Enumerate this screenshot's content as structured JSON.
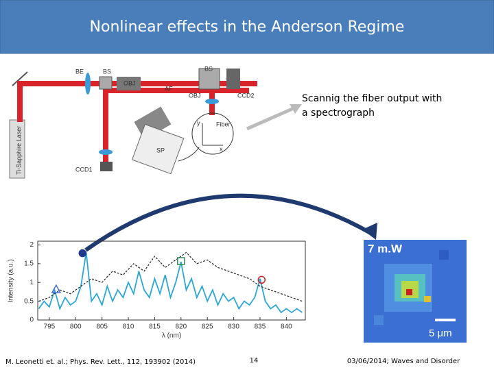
{
  "header": {
    "title": "Nonlinear effects in the Anderson Regime"
  },
  "setup": {
    "labels": [
      "BE",
      "BS",
      "OBJ",
      "AF",
      "OBJ",
      "BS",
      "CCD2",
      "CCD1",
      "SP",
      "Fiber",
      "y",
      "x",
      "Ti-Sapphire Laser"
    ]
  },
  "annotation": {
    "lines": [
      "Scannig the fiber output with",
      "a spectrograph"
    ]
  },
  "inset": {
    "power": "7 m.W",
    "scale": "5 μm"
  },
  "chart_data": {
    "type": "line",
    "xlabel": "λ (nm)",
    "ylabel": "Intensity (a.u.)",
    "xlim": [
      792.8,
      843.6
    ],
    "ylim": [
      0,
      2.1
    ],
    "xticks": [
      795,
      800,
      805,
      810,
      815,
      820,
      825,
      830,
      835,
      840
    ],
    "yticks": [
      0,
      0.5,
      1,
      1.5,
      2
    ],
    "series": [
      {
        "color": "#2aa6d6",
        "style": "solid",
        "x": [
          793,
          794,
          795,
          796,
          797,
          798,
          799,
          800,
          801,
          802,
          803,
          804,
          805,
          806,
          807,
          808,
          809,
          810,
          811,
          812,
          813,
          814,
          815,
          816,
          817,
          818,
          819,
          820,
          821,
          822,
          823,
          824,
          825,
          826,
          827,
          828,
          829,
          830,
          831,
          832,
          833,
          834,
          835,
          836,
          837,
          838,
          839,
          840,
          841,
          842,
          843
        ],
        "values": [
          0.3,
          0.5,
          0.35,
          0.8,
          0.3,
          0.6,
          0.4,
          0.5,
          0.9,
          1.8,
          0.5,
          0.7,
          0.4,
          0.9,
          0.5,
          0.8,
          0.6,
          1.0,
          0.7,
          1.3,
          0.8,
          0.6,
          1.1,
          0.7,
          1.2,
          0.6,
          1.0,
          1.55,
          0.8,
          1.1,
          0.6,
          0.9,
          0.5,
          0.8,
          0.4,
          0.7,
          0.5,
          0.6,
          0.3,
          0.5,
          0.4,
          0.6,
          1.1,
          0.5,
          0.3,
          0.4,
          0.2,
          0.3,
          0.2,
          0.3,
          0.2
        ]
      },
      {
        "color": "#222222",
        "style": "dashed",
        "x": [
          793,
          795,
          797,
          799,
          801,
          803,
          805,
          807,
          809,
          811,
          813,
          815,
          817,
          819,
          821,
          823,
          825,
          827,
          829,
          831,
          833,
          835,
          837,
          839,
          841,
          843
        ],
        "values": [
          0.5,
          0.6,
          0.8,
          0.7,
          0.9,
          1.1,
          1.0,
          1.3,
          1.2,
          1.5,
          1.3,
          1.7,
          1.4,
          1.6,
          1.8,
          1.5,
          1.6,
          1.4,
          1.3,
          1.2,
          1.1,
          0.9,
          0.8,
          0.7,
          0.6,
          0.5
        ]
      }
    ],
    "points": {
      "x": [
        801.3,
        820,
        796.3,
        835.3
      ],
      "y": [
        1.78,
        1.57,
        0.82,
        1.07
      ],
      "shapes": [
        "circle",
        "square",
        "triangle",
        "circle"
      ],
      "colors": [
        "#1f3a8a",
        "#2e8b57",
        "#4a6fd0",
        "#d02020"
      ],
      "filled": [
        true,
        false,
        false,
        false
      ]
    }
  },
  "footer": {
    "citation": "M. Leonetti et. al.; Phys. Rev. Lett., 112, 193902 (2014)",
    "page": "14",
    "date": "03/06/2014; Waves and Disorder"
  }
}
